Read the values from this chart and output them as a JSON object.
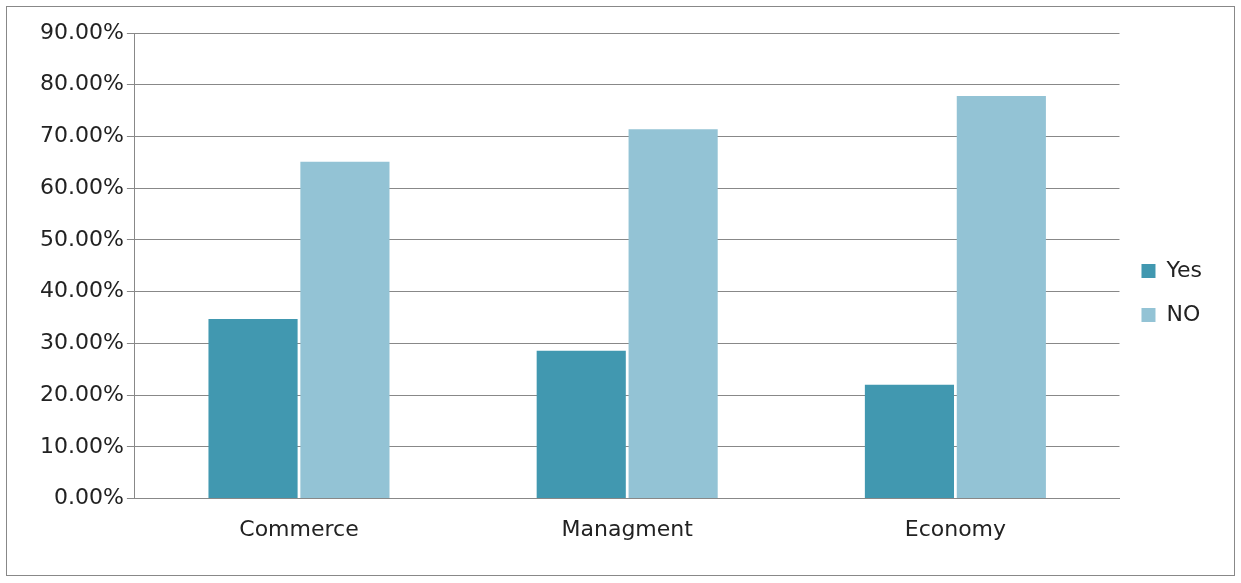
{
  "chart_data": {
    "type": "bar",
    "categories": [
      "Commerce",
      "Managment",
      "Economy"
    ],
    "series": [
      {
        "name": "Yes",
        "color": "#4198b0",
        "values": [
          34.7,
          28.6,
          22.0
        ]
      },
      {
        "name": "NO",
        "color": "#93c3d5",
        "values": [
          65.1,
          71.4,
          77.8
        ]
      }
    ],
    "ylim": [
      0,
      90
    ],
    "yticks": [
      {
        "value": 0,
        "label": "0.00%"
      },
      {
        "value": 10,
        "label": "10.00%"
      },
      {
        "value": 20,
        "label": "20.00%"
      },
      {
        "value": 30,
        "label": "30.00%"
      },
      {
        "value": 40,
        "label": "40.00%"
      },
      {
        "value": 50,
        "label": "50.00%"
      },
      {
        "value": 60,
        "label": "60.00%"
      },
      {
        "value": 70,
        "label": "70.00%"
      },
      {
        "value": 80,
        "label": "80.00%"
      },
      {
        "value": 90,
        "label": "90.00%"
      }
    ],
    "grid": "y",
    "legend": "right"
  }
}
